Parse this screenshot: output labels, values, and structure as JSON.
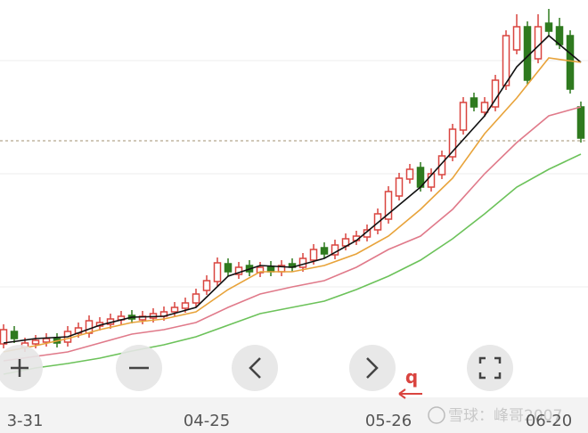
{
  "chart_data": {
    "type": "candlestick",
    "categories": [
      null,
      null,
      "3-31",
      null,
      null,
      null,
      null,
      null,
      null,
      null,
      null,
      null,
      null,
      null,
      null,
      null,
      null,
      null,
      null,
      "04-25",
      null,
      null,
      null,
      null,
      null,
      null,
      null,
      null,
      null,
      null,
      null,
      null,
      null,
      null,
      null,
      null,
      "05-26",
      null,
      null,
      null,
      null,
      null,
      null,
      null,
      null,
      null,
      null,
      null,
      null,
      null,
      null,
      "06-20",
      null,
      null,
      null
    ],
    "open": [
      100,
      114,
      96,
      100,
      102,
      106,
      102,
      112,
      112,
      120,
      122,
      127,
      132,
      127,
      129,
      131,
      136,
      140,
      146,
      160,
      170,
      190,
      178,
      188,
      180,
      187,
      181,
      190,
      186,
      194,
      208,
      200,
      210,
      216,
      220,
      228,
      240,
      266,
      285,
      298,
      276,
      290,
      310,
      340,
      376,
      360,
      366,
      390,
      430,
      456,
      420,
      460,
      456,
      446,
      366
    ],
    "high": [
      122,
      120,
      107,
      110,
      112,
      112,
      120,
      124,
      132,
      130,
      134,
      137,
      138,
      137,
      140,
      142,
      147,
      152,
      162,
      177,
      197,
      196,
      192,
      194,
      192,
      193,
      194,
      196,
      202,
      212,
      214,
      217,
      224,
      227,
      234,
      252,
      277,
      292,
      302,
      304,
      297,
      317,
      347,
      377,
      382,
      377,
      402,
      452,
      470,
      462,
      470,
      476,
      466,
      452,
      372
    ],
    "low": [
      95,
      101,
      91,
      95,
      97,
      96,
      97,
      107,
      107,
      115,
      117,
      122,
      123,
      122,
      124,
      126,
      131,
      135,
      141,
      155,
      165,
      176,
      173,
      176,
      175,
      176,
      176,
      181,
      181,
      189,
      196,
      195,
      205,
      211,
      215,
      223,
      235,
      261,
      280,
      271,
      271,
      285,
      305,
      335,
      361,
      355,
      361,
      385,
      425,
      391,
      415,
      446,
      431,
      381,
      326
    ],
    "close": [
      116,
      106,
      101,
      104,
      106,
      101,
      114,
      118,
      126,
      124,
      128,
      131,
      128,
      131,
      134,
      136,
      141,
      146,
      156,
      171,
      191,
      181,
      186,
      181,
      186,
      181,
      188,
      186,
      196,
      206,
      201,
      211,
      218,
      221,
      228,
      246,
      271,
      286,
      296,
      276,
      291,
      311,
      341,
      371,
      366,
      371,
      396,
      446,
      456,
      396,
      456,
      451,
      436,
      386,
      331
    ],
    "up_color": "#d9443f",
    "down_color": "#2f7a1f",
    "lines": [
      {
        "color": "#111111",
        "x": [
          0,
          3,
          6,
          9,
          12,
          15,
          18,
          21,
          24,
          27,
          30,
          33,
          36,
          39,
          42,
          45,
          48,
          51,
          54
        ],
        "values": [
          101,
          106,
          108,
          121,
          130,
          131,
          141,
          176,
          188,
          186,
          196,
          216,
          246,
          276,
          316,
          356,
          411,
          446,
          416
        ]
      },
      {
        "color": "#e8a33a",
        "x": [
          0,
          3,
          6,
          9,
          12,
          15,
          18,
          21,
          24,
          27,
          30,
          33,
          36,
          39,
          42,
          45,
          48,
          51,
          54
        ],
        "values": [
          91,
          98,
          106,
          116,
          124,
          128,
          136,
          161,
          181,
          181,
          188,
          201,
          221,
          251,
          286,
          336,
          376,
          421,
          416
        ]
      },
      {
        "color": "#e07a8a",
        "x": [
          0,
          3,
          6,
          9,
          12,
          15,
          18,
          21,
          24,
          27,
          30,
          33,
          36,
          39,
          42,
          45,
          48,
          51,
          54
        ],
        "values": [
          81,
          86,
          91,
          101,
          111,
          116,
          124,
          141,
          156,
          164,
          171,
          186,
          206,
          221,
          251,
          291,
          326,
          356,
          366
        ]
      },
      {
        "color": "#6cc25a",
        "x": [
          0,
          3,
          6,
          9,
          12,
          15,
          18,
          21,
          24,
          27,
          30,
          33,
          36,
          39,
          42,
          45,
          48,
          51,
          54
        ],
        "values": [
          66,
          73,
          78,
          84,
          92,
          99,
          108,
          121,
          134,
          141,
          148,
          161,
          176,
          194,
          218,
          246,
          276,
          296,
          313
        ]
      }
    ],
    "ylim": [
      0,
      486
    ],
    "grid_lines": [
      418,
      291,
      164
    ],
    "reference_line": 328,
    "annotation": "q",
    "watermark": "雪球：峰哥2007"
  }
}
